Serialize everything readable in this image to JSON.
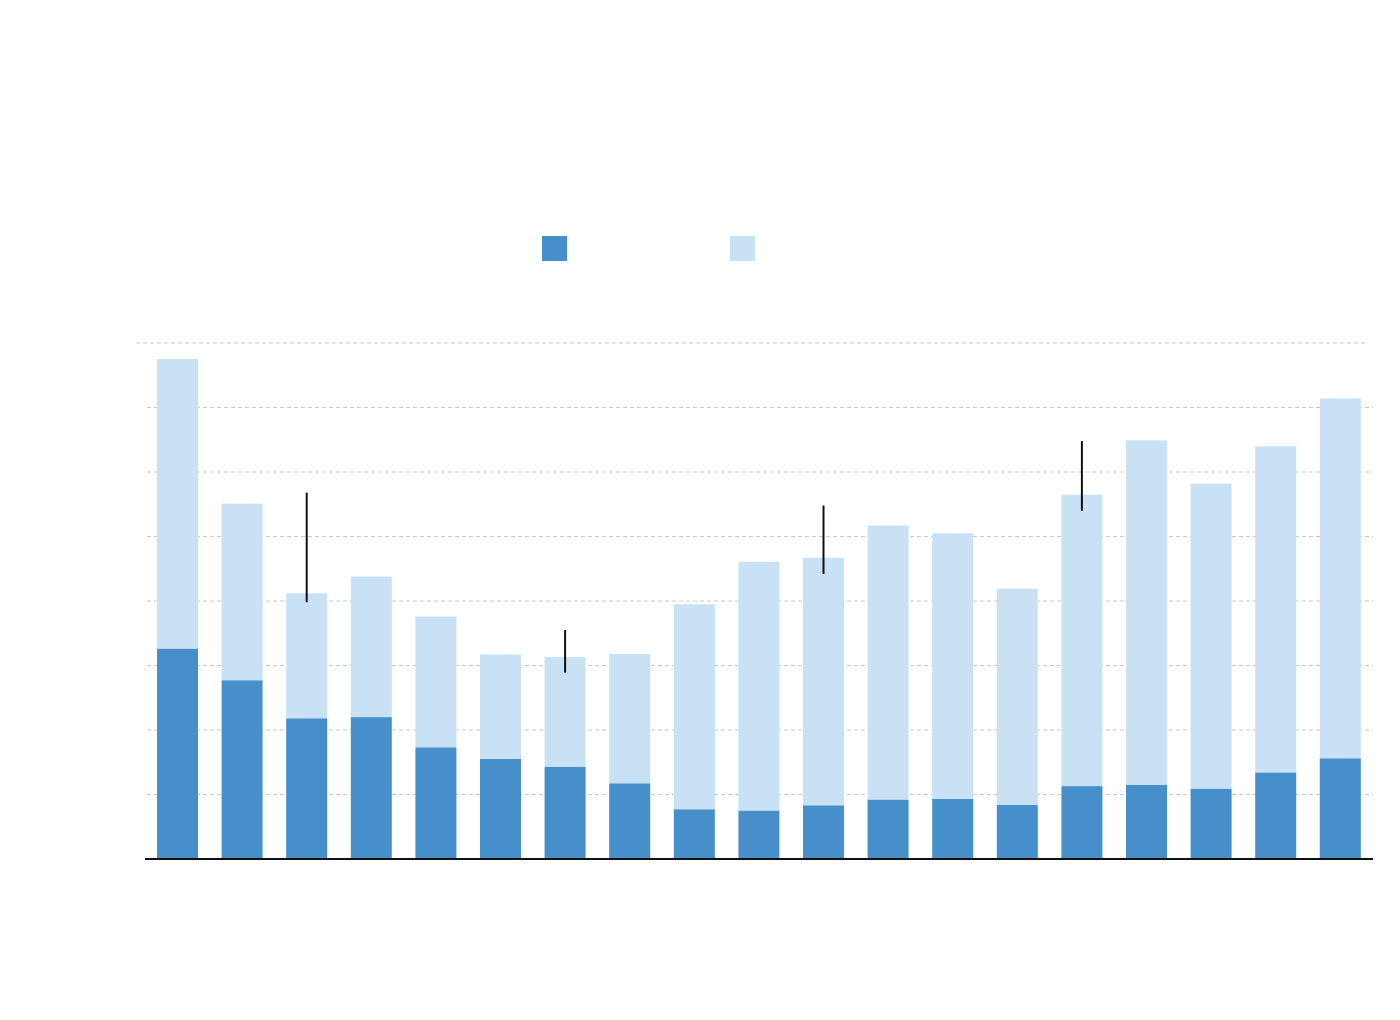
{
  "colors": {
    "series_dark": "#468fca",
    "series_light": "#c9e1f4",
    "grid": "#c9c9c9",
    "axis": "#111111",
    "annotation": "#111111",
    "background": "#ffffff"
  },
  "legend": {
    "placement": "top-center",
    "items": [
      {
        "color_key": "series_dark"
      },
      {
        "color_key": "series_light"
      }
    ]
  },
  "chart_data": {
    "type": "bar",
    "stacked": true,
    "grid": "horizontal-dashed",
    "ylim": [
      0,
      8
    ],
    "y_gridlines": [
      1,
      2,
      3,
      4,
      5,
      6,
      7,
      8
    ],
    "n_categories": 19,
    "series": [
      {
        "color_key": "series_dark",
        "values": [
          3.26,
          2.77,
          2.18,
          2.2,
          1.73,
          1.55,
          1.43,
          1.17,
          0.77,
          0.75,
          0.83,
          0.92,
          0.93,
          0.84,
          1.13,
          1.15,
          1.09,
          1.34,
          1.56
        ]
      },
      {
        "color_key": "series_light",
        "values": [
          4.49,
          2.74,
          1.94,
          2.18,
          2.03,
          1.62,
          1.7,
          2.01,
          3.18,
          3.86,
          3.84,
          4.25,
          4.12,
          3.35,
          4.52,
          5.34,
          4.73,
          5.06,
          5.58
        ]
      }
    ],
    "annotations": [
      {
        "category_index": 2,
        "y_from": 3.98,
        "y_to": 5.68
      },
      {
        "category_index": 6,
        "y_from": 2.89,
        "y_to": 3.55
      },
      {
        "category_index": 10,
        "y_from": 4.42,
        "y_to": 5.48
      },
      {
        "category_index": 14,
        "y_from": 5.4,
        "y_to": 6.48
      }
    ]
  }
}
